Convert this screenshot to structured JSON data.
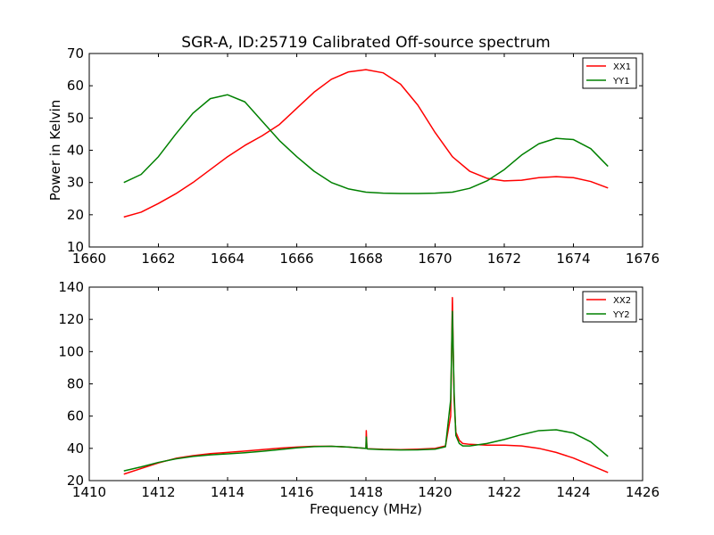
{
  "figure": {
    "title": "SGR-A, ID:25719 Calibrated Off-source spectrum",
    "colors": {
      "red": "#ff0000",
      "green": "#008000",
      "axes": "#000000",
      "background": "#ffffff"
    }
  },
  "chart_data": [
    {
      "type": "line",
      "title": "SGR-A, ID:25719 Calibrated Off-source spectrum",
      "xlabel": "",
      "ylabel": "Power in Kelvin",
      "xlim": [
        1660,
        1676
      ],
      "ylim": [
        10,
        70
      ],
      "xticks": [
        1660,
        1662,
        1664,
        1666,
        1668,
        1670,
        1672,
        1674,
        1676
      ],
      "yticks": [
        10,
        20,
        30,
        40,
        50,
        60,
        70
      ],
      "grid": false,
      "legend_position": "top-right",
      "series": [
        {
          "name": "XX1",
          "color": "#ff0000",
          "x": [
            1661.0,
            1661.5,
            1662.0,
            1662.5,
            1663.0,
            1663.5,
            1664.0,
            1664.5,
            1665.0,
            1665.5,
            1666.0,
            1666.5,
            1667.0,
            1667.5,
            1668.0,
            1668.5,
            1669.0,
            1669.5,
            1670.0,
            1670.5,
            1671.0,
            1671.5,
            1672.0,
            1672.5,
            1673.0,
            1673.5,
            1674.0,
            1674.5,
            1675.0
          ],
          "y": [
            19.3,
            20.8,
            23.5,
            26.5,
            30.0,
            34.0,
            38.0,
            41.5,
            44.5,
            48.0,
            53.0,
            58.0,
            62.0,
            64.3,
            65.0,
            64.0,
            60.5,
            54.0,
            45.5,
            38.0,
            33.5,
            31.3,
            30.5,
            30.7,
            31.5,
            31.8,
            31.5,
            30.3,
            28.3
          ]
        },
        {
          "name": "YY1",
          "color": "#008000",
          "x": [
            1661.0,
            1661.5,
            1662.0,
            1662.5,
            1663.0,
            1663.5,
            1664.0,
            1664.5,
            1665.0,
            1665.5,
            1666.0,
            1666.5,
            1667.0,
            1667.5,
            1668.0,
            1668.5,
            1669.0,
            1669.5,
            1670.0,
            1670.5,
            1671.0,
            1671.5,
            1672.0,
            1672.5,
            1673.0,
            1673.5,
            1674.0,
            1674.5,
            1675.0
          ],
          "y": [
            30.0,
            32.5,
            38.0,
            45.0,
            51.5,
            56.0,
            57.2,
            55.0,
            49.0,
            43.0,
            38.0,
            33.5,
            30.0,
            28.0,
            27.0,
            26.7,
            26.6,
            26.6,
            26.7,
            27.0,
            28.2,
            30.5,
            34.0,
            38.5,
            42.0,
            43.7,
            43.3,
            40.5,
            35.0
          ]
        }
      ]
    },
    {
      "type": "line",
      "title": "",
      "xlabel": "Frequency (MHz)",
      "ylabel": "",
      "xlim": [
        1410,
        1426
      ],
      "ylim": [
        20,
        140
      ],
      "xticks": [
        1410,
        1412,
        1414,
        1416,
        1418,
        1420,
        1422,
        1424,
        1426
      ],
      "yticks": [
        20,
        40,
        60,
        80,
        100,
        120,
        140
      ],
      "grid": false,
      "legend_position": "top-right",
      "series": [
        {
          "name": "XX2",
          "color": "#ff0000",
          "x": [
            1411.0,
            1411.5,
            1412.0,
            1412.5,
            1413.0,
            1413.5,
            1414.0,
            1414.5,
            1415.0,
            1415.5,
            1416.0,
            1416.5,
            1417.0,
            1417.5,
            1418.0,
            1418.01,
            1418.03,
            1418.05,
            1418.5,
            1419.0,
            1419.5,
            1420.0,
            1420.3,
            1420.45,
            1420.5,
            1420.55,
            1420.6,
            1420.7,
            1420.8,
            1421.0,
            1421.5,
            1422.0,
            1422.5,
            1423.0,
            1423.5,
            1424.0,
            1424.5,
            1425.0
          ],
          "y": [
            24.0,
            27.5,
            31.0,
            33.8,
            35.5,
            36.7,
            37.5,
            38.3,
            39.2,
            40.1,
            40.8,
            41.3,
            41.3,
            40.8,
            40.0,
            51.0,
            40.0,
            39.8,
            39.4,
            39.2,
            39.5,
            40.0,
            41.5,
            60.0,
            133.5,
            70.0,
            50.0,
            45.0,
            43.0,
            42.5,
            42.0,
            42.0,
            41.5,
            40.0,
            37.5,
            34.0,
            29.5,
            25.0
          ]
        },
        {
          "name": "YY2",
          "color": "#008000",
          "x": [
            1411.0,
            1411.5,
            1412.0,
            1412.5,
            1413.0,
            1413.5,
            1414.0,
            1414.5,
            1415.0,
            1415.5,
            1416.0,
            1416.5,
            1417.0,
            1417.5,
            1418.0,
            1418.01,
            1418.03,
            1418.05,
            1418.5,
            1419.0,
            1419.5,
            1420.0,
            1420.3,
            1420.45,
            1420.5,
            1420.55,
            1420.6,
            1420.7,
            1420.8,
            1421.0,
            1421.5,
            1422.0,
            1422.5,
            1423.0,
            1423.5,
            1424.0,
            1424.5,
            1425.0
          ],
          "y": [
            26.0,
            28.5,
            31.3,
            33.5,
            35.0,
            36.0,
            36.6,
            37.3,
            38.2,
            39.2,
            40.3,
            41.1,
            41.3,
            40.8,
            40.0,
            47.0,
            39.8,
            39.6,
            39.2,
            39.0,
            39.1,
            39.5,
            41.0,
            70.0,
            125.0,
            75.0,
            48.0,
            43.0,
            41.5,
            41.5,
            43.0,
            45.5,
            48.5,
            51.0,
            51.5,
            49.5,
            44.0,
            35.0
          ]
        }
      ]
    }
  ]
}
